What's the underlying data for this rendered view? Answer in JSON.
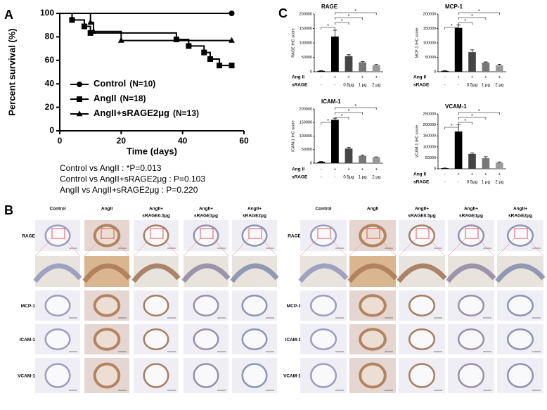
{
  "panel_labels": [
    "A",
    "B",
    "C"
  ],
  "chart_data": [
    {
      "type": "line",
      "ylabel": "Percent survival (%)",
      "xlabel": "Time (days)",
      "xlim": [
        0,
        60
      ],
      "xticks": [
        0,
        20,
        40,
        60
      ],
      "ylim": [
        0,
        100
      ],
      "yticks": [
        0,
        20,
        40,
        60,
        80,
        100
      ],
      "series": [
        {
          "name": "Control",
          "n_label": "(N=10)",
          "marker": "circle",
          "color": "#000000",
          "x": [
            0,
            56
          ],
          "values": [
            100,
            100
          ]
        },
        {
          "name": "AngII",
          "n_label": "(N=18)",
          "marker": "square",
          "color": "#000000",
          "x": [
            0,
            4,
            8,
            10,
            38,
            42,
            47,
            49,
            52,
            56
          ],
          "values": [
            100,
            94.4,
            88.9,
            83.3,
            77.8,
            72.2,
            66.7,
            61.1,
            55.6,
            55.6
          ]
        },
        {
          "name": "AngII+sRAGE2μg",
          "n_label": "(N=13)",
          "marker": "triangle",
          "color": "#000000",
          "x": [
            0,
            10,
            11,
            20,
            56
          ],
          "values": [
            100,
            92.3,
            84.6,
            76.9,
            76.9
          ]
        }
      ],
      "stats": [
        "Control vs AngII : *P=0.013",
        "Control vs AngII+sRAGE2μg : P=0.103",
        "AngII vs AngII+sRAGE2μg : P=0.220"
      ]
    },
    {
      "type": "bar",
      "title": "RAGE",
      "ylabel": "RAGE IHC score",
      "ylim": [
        0,
        200000
      ],
      "yticks": [
        0,
        50000,
        100000,
        150000,
        200000
      ],
      "values": [
        3000,
        122000,
        54000,
        33000,
        23000
      ],
      "errors": [
        500,
        22000,
        5000,
        2000,
        2000
      ],
      "colors": [
        "#000000",
        "#000000",
        "#444444",
        "#777777",
        "#999999"
      ],
      "conditions": [
        {
          "label": "Ang II",
          "values": [
            "-",
            "+",
            "+",
            "+",
            "+"
          ]
        },
        {
          "label": "sRAGE",
          "values": [
            "-",
            "-",
            "0.5μg",
            "1 μg",
            "2 μg"
          ]
        }
      ],
      "significance": [
        {
          "between": [
            1,
            4
          ],
          "label": "*"
        },
        {
          "between": [
            1,
            3
          ],
          "label": "*"
        },
        {
          "between": [
            1,
            2
          ],
          "label": "*"
        },
        {
          "between": [
            0,
            1
          ],
          "label": "*"
        }
      ]
    },
    {
      "type": "bar",
      "title": "MCP-1",
      "ylabel": "MCP-1 IHC score",
      "ylim": [
        0,
        200000
      ],
      "yticks": [
        0,
        50000,
        100000,
        150000,
        200000
      ],
      "values": [
        3000,
        152000,
        68000,
        32000,
        22000
      ],
      "errors": [
        500,
        10000,
        8000,
        2000,
        4000
      ],
      "colors": [
        "#000000",
        "#000000",
        "#444444",
        "#777777",
        "#999999"
      ],
      "conditions": [
        {
          "label": "Ang II",
          "values": [
            "-",
            "+",
            "+",
            "+",
            "+"
          ]
        },
        {
          "label": "sRAGE",
          "values": [
            "-",
            "-",
            "0.5μg",
            "1 μg",
            "2 μg"
          ]
        }
      ],
      "significance": [
        {
          "between": [
            1,
            4
          ],
          "label": "*"
        },
        {
          "between": [
            1,
            3
          ],
          "label": "*"
        },
        {
          "between": [
            1,
            2
          ],
          "label": "*"
        },
        {
          "between": [
            0,
            1
          ],
          "label": "*"
        }
      ]
    },
    {
      "type": "bar",
      "title": "ICAM-1",
      "ylabel": "ICAM-1 IHC score",
      "ylim": [
        0,
        200000
      ],
      "yticks": [
        0,
        50000,
        100000,
        150000,
        200000
      ],
      "values": [
        5000,
        160000,
        54000,
        27000,
        22000
      ],
      "errors": [
        1000,
        6000,
        4000,
        3000,
        1000
      ],
      "colors": [
        "#000000",
        "#000000",
        "#444444",
        "#777777",
        "#999999"
      ],
      "conditions": [
        {
          "label": "Ang II",
          "values": [
            "-",
            "+",
            "+",
            "+",
            "+"
          ]
        },
        {
          "label": "sRAGE",
          "values": [
            "-",
            "-",
            "0.5μg",
            "1 μg",
            "2 μg"
          ]
        }
      ],
      "significance": [
        {
          "between": [
            1,
            4
          ],
          "label": "*"
        },
        {
          "between": [
            1,
            3
          ],
          "label": "*"
        },
        {
          "between": [
            1,
            2
          ],
          "label": "*"
        },
        {
          "between": [
            0,
            1
          ],
          "label": "*"
        }
      ]
    },
    {
      "type": "bar",
      "title": "VCAM-1",
      "ylabel": "VCAM-1 IHC score",
      "ylim": [
        0,
        250000
      ],
      "yticks": [
        0,
        50000,
        100000,
        150000,
        200000,
        250000
      ],
      "values": [
        3000,
        170000,
        68000,
        48000,
        28000
      ],
      "errors": [
        500,
        30000,
        4000,
        7000,
        3000
      ],
      "colors": [
        "#000000",
        "#000000",
        "#444444",
        "#777777",
        "#999999"
      ],
      "conditions": [
        {
          "label": "Ang II",
          "values": [
            "-",
            "+",
            "+",
            "+",
            "+"
          ]
        },
        {
          "label": "sRAGE",
          "values": [
            "-",
            "-",
            "0.5μg",
            "1 μg",
            "2 μg"
          ]
        }
      ],
      "significance": [
        {
          "between": [
            1,
            4
          ],
          "label": "*"
        },
        {
          "between": [
            1,
            3
          ],
          "label": "*"
        },
        {
          "between": [
            1,
            2
          ],
          "label": "*"
        },
        {
          "between": [
            0,
            1
          ],
          "label": "*"
        }
      ]
    }
  ],
  "histology": [
    {
      "columns": [
        [
          "Control"
        ],
        [
          "AngII"
        ],
        [
          "AngII+",
          "sRAGE0.5μg"
        ],
        [
          "AngII+",
          "sRAGE1μg"
        ],
        [
          "AngII+",
          "sRAGE2μg"
        ]
      ],
      "rows": [
        "RAGE",
        null,
        "MCP-1",
        "ICAM-1",
        "VCAM-1"
      ]
    },
    {
      "columns": [
        [
          "Control"
        ],
        [
          "AngII"
        ],
        [
          "AngII+",
          "sRAGE0.5μg"
        ],
        [
          "AngII+",
          "sRAGE1μg"
        ],
        [
          "AngII+",
          "sRAGE2μg"
        ]
      ],
      "rows": [
        "RAGE",
        null,
        "MCP-1",
        "ICAM-1",
        "VCAM-1"
      ]
    }
  ]
}
